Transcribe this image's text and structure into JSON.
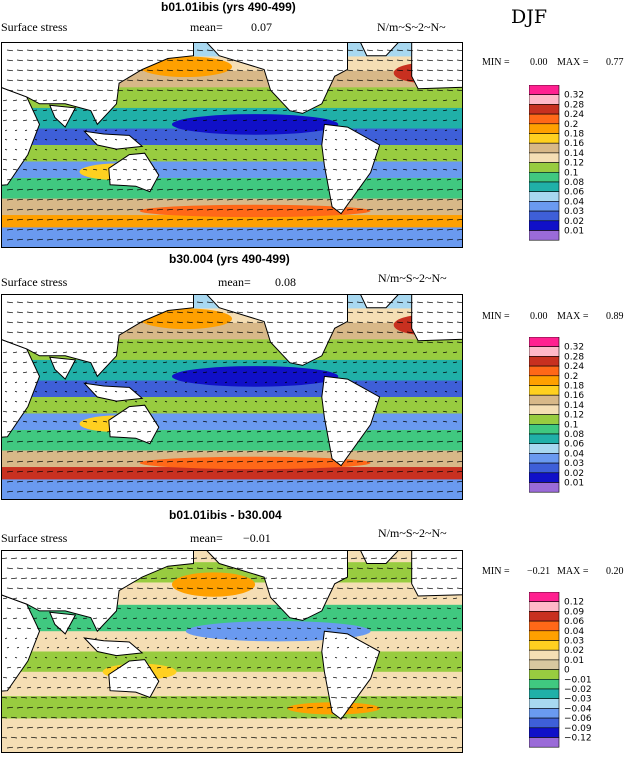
{
  "season": "DJF",
  "units_label": "N/m~S~2~N~",
  "min_label": "MIN =",
  "max_label": "MAX =",
  "mean_label": "mean=",
  "palette_abs": [
    "#9a6bd8",
    "#1010c8",
    "#3e5fd8",
    "#6a9af0",
    "#a8d8f0",
    "#20b0a8",
    "#40c880",
    "#98cc40",
    "#f5deb4",
    "#d8b888",
    "#ffd020",
    "#ffa000",
    "#ff6818",
    "#c83020",
    "#ffb8c8",
    "#ff2090"
  ],
  "palette_diff": [
    "#9a6bd8",
    "#1010c8",
    "#3e5fd8",
    "#6a9af0",
    "#a8d8f0",
    "#20b0a8",
    "#40c880",
    "#98cc40",
    "#d8c8a0",
    "#f5deb4",
    "#ffd020",
    "#ffa000",
    "#ff6818",
    "#c83020",
    "#ffb8c8",
    "#ff2090"
  ],
  "chart_data": [
    {
      "type": "heatmap",
      "title": "b01.01ibis (yrs 490-499)",
      "variable": "Surface stress",
      "mean": "0.07",
      "min": "0.00",
      "max": "0.77",
      "units": "N/m~S~2~N~",
      "season": "DJF",
      "levels": [
        "0.32",
        "0.28",
        "0.24",
        "0.2",
        "0.18",
        "0.16",
        "0.14",
        "0.12",
        "0.1",
        "0.08",
        "0.06",
        "0.04",
        "0.03",
        "0.02",
        "0.01"
      ]
    },
    {
      "type": "heatmap",
      "title": "b30.004 (yrs 490-499)",
      "variable": "Surface stress",
      "mean": "0.08",
      "min": "0.00",
      "max": "0.89",
      "units": "N/m~S~2~N~",
      "season": "DJF",
      "levels": [
        "0.32",
        "0.28",
        "0.24",
        "0.2",
        "0.18",
        "0.16",
        "0.14",
        "0.12",
        "0.1",
        "0.08",
        "0.06",
        "0.04",
        "0.03",
        "0.02",
        "0.01"
      ]
    },
    {
      "type": "heatmap",
      "title": "b01.01ibis - b30.004",
      "variable": "Surface stress",
      "mean": "−0.01",
      "min": "−0.21",
      "max": "0.20",
      "units": "N/m~S~2~N~",
      "season": "DJF",
      "levels": [
        "0.12",
        "0.09",
        "0.06",
        "0.04",
        "0.03",
        "0.02",
        "0.01",
        "0",
        "−0.01",
        "−0.02",
        "−0.03",
        "−0.04",
        "−0.06",
        "−0.09",
        "−0.12"
      ]
    }
  ]
}
